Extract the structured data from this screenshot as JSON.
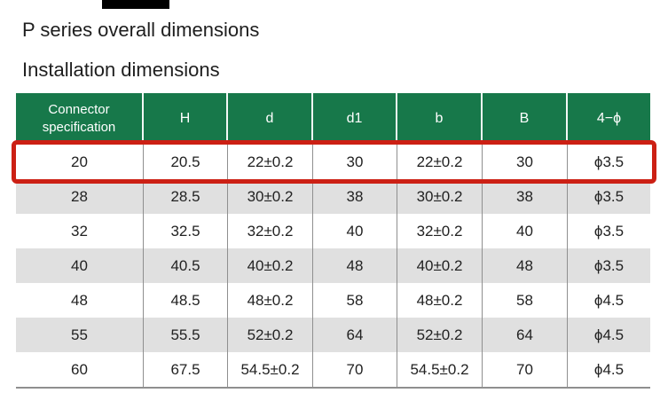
{
  "page": {
    "title_line1": "P series overall dimensions",
    "title_line2": "Installation dimensions"
  },
  "table": {
    "columns": [
      "Connector specification",
      "H",
      "d",
      "d1",
      "b",
      "B",
      "4−ϕ"
    ],
    "rows": [
      {
        "highlighted": true,
        "cells": [
          "20",
          "20.5",
          "22±0.2",
          "30",
          "22±0.2",
          "30",
          "ϕ3.5"
        ]
      },
      {
        "highlighted": false,
        "cells": [
          "28",
          "28.5",
          "30±0.2",
          "38",
          "30±0.2",
          "38",
          "ϕ3.5"
        ]
      },
      {
        "highlighted": false,
        "cells": [
          "32",
          "32.5",
          "32±0.2",
          "40",
          "32±0.2",
          "40",
          "ϕ3.5"
        ]
      },
      {
        "highlighted": false,
        "cells": [
          "40",
          "40.5",
          "40±0.2",
          "48",
          "40±0.2",
          "48",
          "ϕ3.5"
        ]
      },
      {
        "highlighted": false,
        "cells": [
          "48",
          "48.5",
          "48±0.2",
          "58",
          "48±0.2",
          "58",
          "ϕ4.5"
        ]
      },
      {
        "highlighted": false,
        "cells": [
          "55",
          "55.5",
          "52±0.2",
          "64",
          "52±0.2",
          "64",
          "ϕ4.5"
        ]
      },
      {
        "highlighted": false,
        "cells": [
          "60",
          "67.5",
          "54.5±0.2",
          "70",
          "54.5±0.2",
          "70",
          "ϕ4.5"
        ]
      }
    ],
    "colors": {
      "header_bg": "#17784a",
      "header_text": "#ffffff",
      "row_bg": "#ffffff",
      "row_alt_bg": "#e0e0e0",
      "divider": "#8f8f8f",
      "highlight_border": "#cc2014",
      "text": "#222222"
    }
  }
}
